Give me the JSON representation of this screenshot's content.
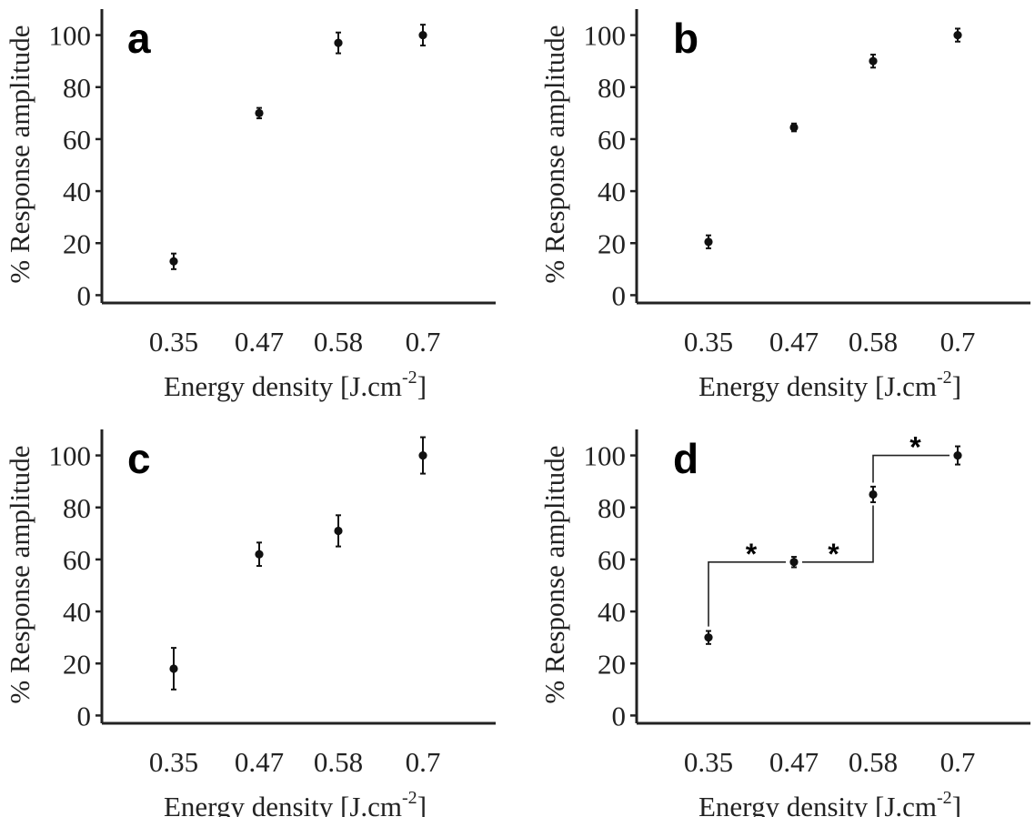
{
  "chart_data": [
    {
      "panel": "a",
      "type": "scatter",
      "categories": [
        "0.35",
        "0.47",
        "0.58",
        "0.7"
      ],
      "values": [
        13,
        70,
        97,
        100
      ],
      "errors": [
        3,
        2,
        4,
        4
      ],
      "yticks": [
        0,
        20,
        40,
        60,
        80,
        100
      ],
      "ylim": [
        -3,
        110
      ],
      "xlabel": "Energy density [J.cm",
      "xlabel_sup": "-2",
      "xlabel_end": "]",
      "ylabel": "% Response amplitude",
      "significance": []
    },
    {
      "panel": "b",
      "type": "scatter",
      "categories": [
        "0.35",
        "0.47",
        "0.58",
        "0.7"
      ],
      "values": [
        20.5,
        64.5,
        90,
        100
      ],
      "errors": [
        2.5,
        1.5,
        2.5,
        2.5
      ],
      "yticks": [
        0,
        20,
        40,
        60,
        80,
        100
      ],
      "ylim": [
        -3,
        110
      ],
      "xlabel": "Energy density [J.cm",
      "xlabel_sup": "-2",
      "xlabel_end": "]",
      "ylabel": "% Response amplitude",
      "significance": []
    },
    {
      "panel": "c",
      "type": "scatter",
      "categories": [
        "0.35",
        "0.47",
        "0.58",
        "0.7"
      ],
      "values": [
        18,
        62,
        71,
        100
      ],
      "errors": [
        8,
        4.5,
        6,
        7
      ],
      "yticks": [
        0,
        20,
        40,
        60,
        80,
        100
      ],
      "ylim": [
        -3,
        110
      ],
      "xlabel": "Energy density [J.cm",
      "xlabel_sup": "-2",
      "xlabel_end": "]",
      "ylabel": "% Response amplitude",
      "significance": []
    },
    {
      "panel": "d",
      "type": "scatter",
      "categories": [
        "0.35",
        "0.47",
        "0.58",
        "0.7"
      ],
      "values": [
        30,
        59,
        85,
        100
      ],
      "errors": [
        2.5,
        2,
        3,
        3.5
      ],
      "yticks": [
        0,
        20,
        40,
        60,
        80,
        100
      ],
      "ylim": [
        -3,
        110
      ],
      "xlabel": "Energy density [J.cm",
      "xlabel_sup": "-2",
      "xlabel_end": "]",
      "ylabel": "% Response amplitude",
      "significance": [
        {
          "from": 0,
          "to": 1,
          "level": 59,
          "label": "*"
        },
        {
          "from": 1,
          "to": 2,
          "level": 59,
          "label": "*"
        },
        {
          "from": 2,
          "to": 3,
          "level": 100,
          "label": "*"
        }
      ]
    }
  ]
}
